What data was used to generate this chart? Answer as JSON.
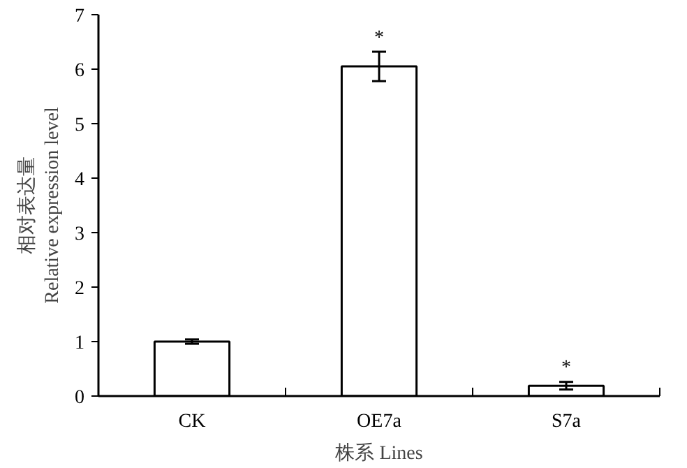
{
  "chart_data": {
    "type": "bar",
    "xlabel": "株系 Lines",
    "ylabel": "相对表达量\nRelative expression level",
    "categories": [
      "CK",
      "OE7a",
      "S7a"
    ],
    "values": [
      1.0,
      6.05,
      0.19
    ],
    "errors": [
      0.04,
      0.27,
      0.07
    ],
    "color": "#ffffff",
    "ylim": [
      0,
      7
    ],
    "yticks": [
      0,
      1,
      2,
      3,
      4,
      5,
      6,
      7
    ],
    "grid": false,
    "annotations": [
      "*",
      "*"
    ]
  }
}
